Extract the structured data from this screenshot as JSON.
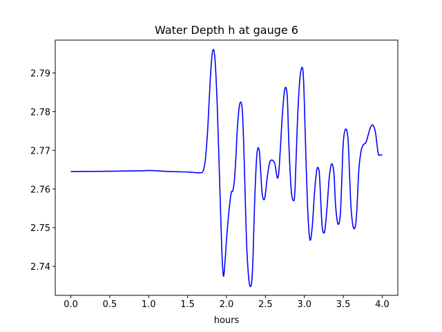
{
  "chart_data": {
    "type": "line",
    "title": "Water Depth h at gauge 6",
    "xlabel": "hours",
    "ylabel": "",
    "xlim": [
      -0.2,
      4.2
    ],
    "ylim": [
      2.7325,
      2.7985
    ],
    "grid": false,
    "legend": "none",
    "x_ticks": [
      0.0,
      0.5,
      1.0,
      1.5,
      2.0,
      2.5,
      3.0,
      3.5,
      4.0
    ],
    "x_tick_labels": [
      "0.0",
      "0.5",
      "1.0",
      "1.5",
      "2.0",
      "2.5",
      "3.0",
      "3.5",
      "4.0"
    ],
    "y_ticks": [
      2.74,
      2.75,
      2.76,
      2.77,
      2.78,
      2.79
    ],
    "y_tick_labels": [
      "2.74",
      "2.75",
      "2.76",
      "2.77",
      "2.78",
      "2.79"
    ],
    "series": [
      {
        "color": "#0000ff",
        "x": [
          0.0,
          0.5,
          0.9,
          1.0,
          1.1,
          1.3,
          1.5,
          1.65,
          1.7,
          1.73,
          1.76,
          1.79,
          1.82,
          1.85,
          1.88,
          1.91,
          1.94,
          1.96,
          1.98,
          2.0,
          2.03,
          2.06,
          2.08,
          2.1,
          2.12,
          2.14,
          2.17,
          2.2,
          2.22,
          2.24,
          2.26,
          2.29,
          2.32,
          2.34,
          2.36,
          2.39,
          2.42,
          2.44,
          2.46,
          2.49,
          2.52,
          2.55,
          2.58,
          2.62,
          2.65,
          2.67,
          2.69,
          2.72,
          2.75,
          2.78,
          2.8,
          2.83,
          2.86,
          2.88,
          2.91,
          2.94,
          2.97,
          2.99,
          3.01,
          3.04,
          3.07,
          3.1,
          3.13,
          3.16,
          3.19,
          3.21,
          3.23,
          3.26,
          3.29,
          3.32,
          3.35,
          3.38,
          3.4,
          3.43,
          3.46,
          3.48,
          3.5,
          3.53,
          3.56,
          3.58,
          3.6,
          3.63,
          3.66,
          3.68,
          3.7,
          3.73,
          3.76,
          3.79,
          3.82,
          3.85,
          3.88,
          3.91,
          3.93,
          3.95,
          3.97,
          3.99,
          4.0
        ],
        "y": [
          2.7645,
          2.7646,
          2.7647,
          2.7648,
          2.7647,
          2.7645,
          2.7644,
          2.7642,
          2.7647,
          2.768,
          2.776,
          2.788,
          2.7955,
          2.794,
          2.782,
          2.763,
          2.744,
          2.7375,
          2.741,
          2.747,
          2.754,
          2.759,
          2.7595,
          2.762,
          2.768,
          2.776,
          2.782,
          2.781,
          2.772,
          2.758,
          2.745,
          2.736,
          2.7355,
          2.742,
          2.756,
          2.769,
          2.77,
          2.764,
          2.7585,
          2.7575,
          2.7625,
          2.7665,
          2.7675,
          2.7665,
          2.763,
          2.764,
          2.77,
          2.78,
          2.786,
          2.784,
          2.772,
          2.76,
          2.757,
          2.76,
          2.777,
          2.788,
          2.7915,
          2.788,
          2.775,
          2.756,
          2.747,
          2.75,
          2.759,
          2.765,
          2.7645,
          2.757,
          2.75,
          2.749,
          2.755,
          2.763,
          2.7665,
          2.764,
          2.756,
          2.751,
          2.753,
          2.762,
          2.772,
          2.7755,
          2.773,
          2.764,
          2.755,
          2.75,
          2.751,
          2.757,
          2.765,
          2.77,
          2.7715,
          2.772,
          2.774,
          2.776,
          2.7765,
          2.775,
          2.772,
          2.769,
          2.7688,
          2.7688,
          2.7688
        ]
      }
    ]
  }
}
